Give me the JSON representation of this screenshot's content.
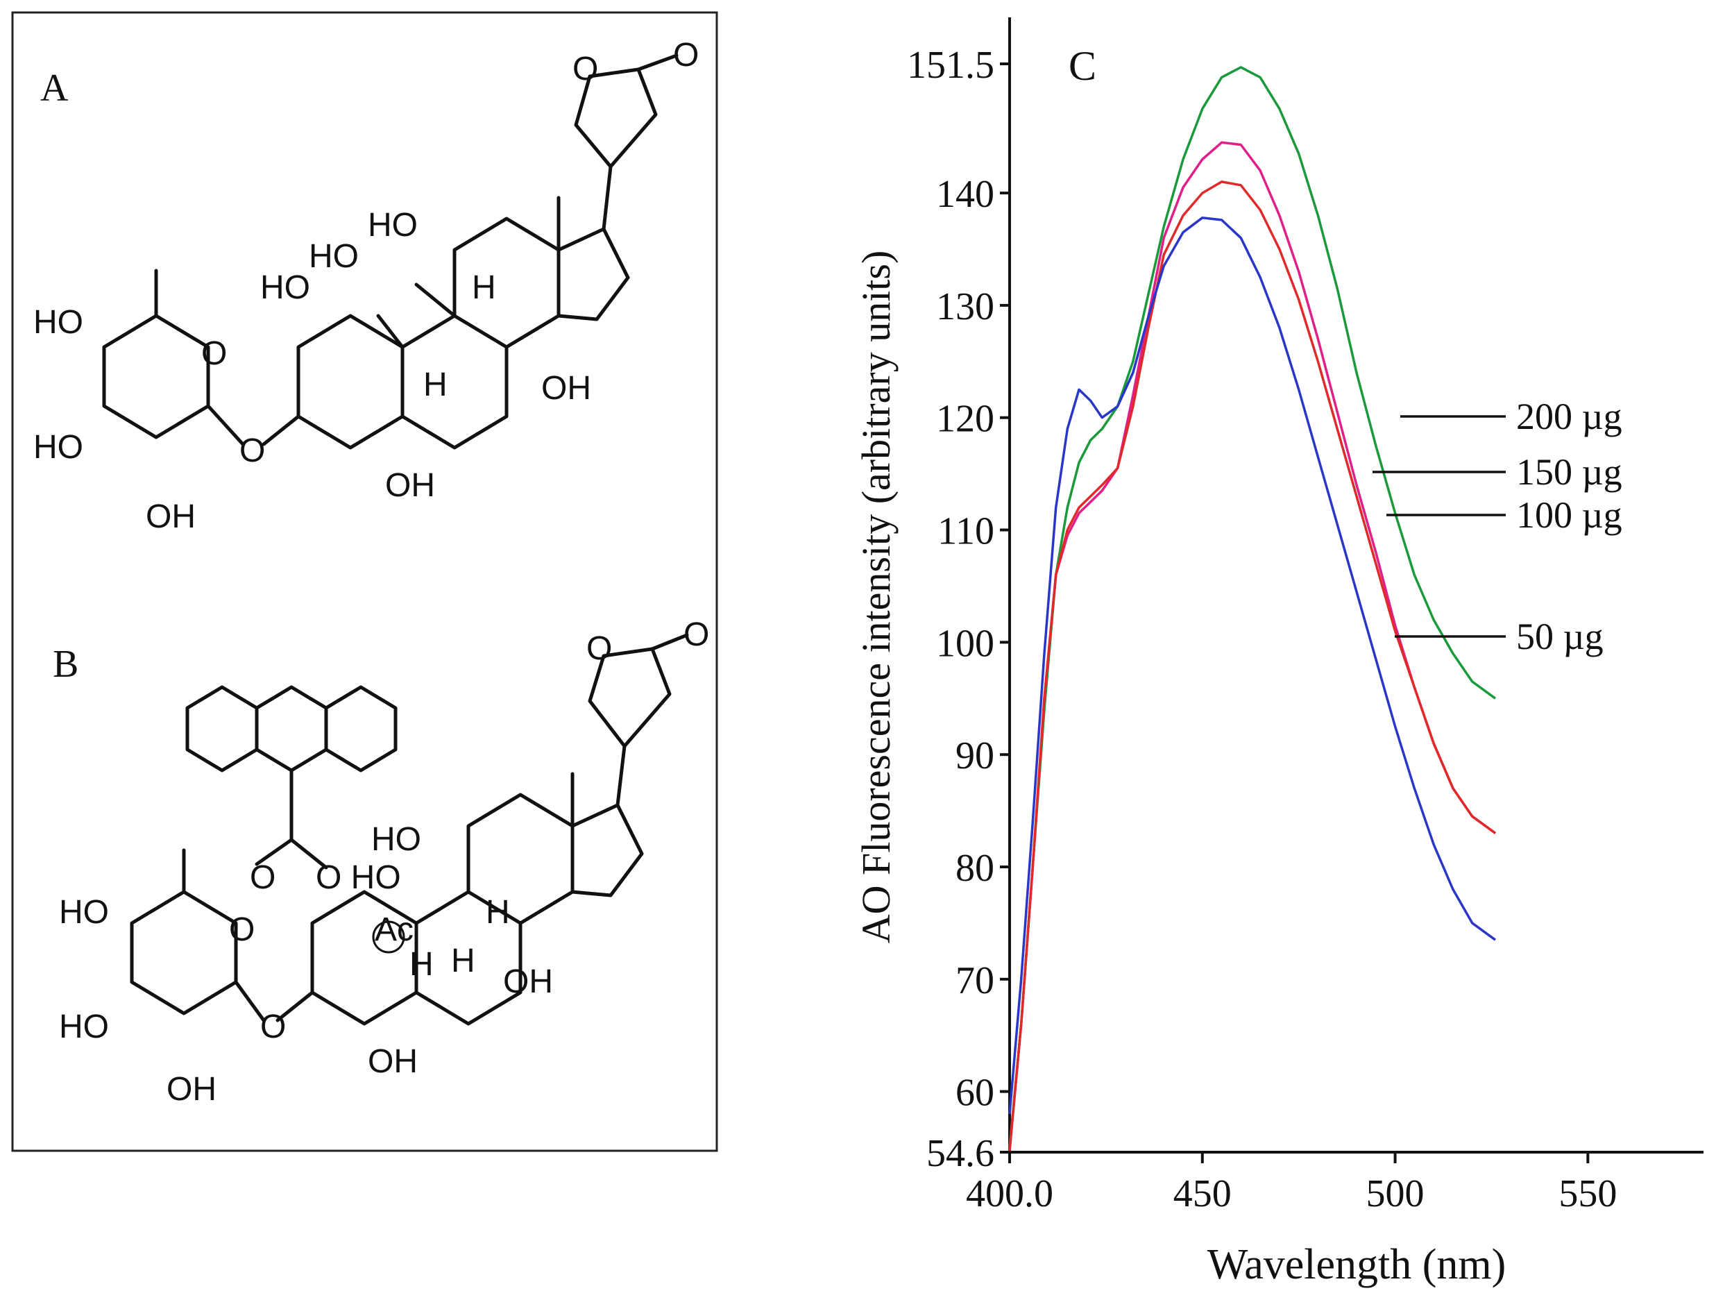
{
  "panels": {
    "a_label": "A",
    "b_label": "B",
    "c_label": "C"
  },
  "atoms": {
    "o": "O",
    "ho": "HO",
    "oh": "OH",
    "h": "H",
    "ac": "Ac",
    "hohoo": "O HO",
    "oeq": "O"
  },
  "chart_data": {
    "type": "line",
    "xlabel": "Wavelength (nm)",
    "ylabel": "AO Fluorescence intensity (arbitrary units)",
    "xlim": [
      400,
      580
    ],
    "ylim": [
      54.6,
      151.5
    ],
    "x_ticks": [
      {
        "value": 400,
        "label": "400.0"
      },
      {
        "value": 450,
        "label": "450"
      },
      {
        "value": 500,
        "label": "500"
      },
      {
        "value": 550,
        "label": "550"
      }
    ],
    "y_ticks": [
      {
        "value": 54.6,
        "label": "54.6"
      },
      {
        "value": 60,
        "label": "60"
      },
      {
        "value": 70,
        "label": "70"
      },
      {
        "value": 80,
        "label": "80"
      },
      {
        "value": 90,
        "label": "90"
      },
      {
        "value": 100,
        "label": "100"
      },
      {
        "value": 110,
        "label": "110"
      },
      {
        "value": 120,
        "label": "120"
      },
      {
        "value": 130,
        "label": "130"
      },
      {
        "value": 140,
        "label": "140"
      },
      {
        "value": 151.5,
        "label": "151.5"
      }
    ],
    "series": [
      {
        "name": "200 µg",
        "color": "#1a9a3a",
        "x": [
          400,
          403,
          406,
          409,
          412,
          415,
          418,
          421,
          424,
          428,
          432,
          436,
          440,
          445,
          450,
          455,
          460,
          465,
          470,
          475,
          480,
          485,
          490,
          495,
          500,
          505,
          510,
          515,
          520,
          526
        ],
        "y": [
          55,
          66,
          80,
          94,
          106,
          112,
          116,
          118,
          119,
          121,
          125,
          131,
          137,
          143,
          147.5,
          150.3,
          151.2,
          150.3,
          147.5,
          143.5,
          138,
          131.5,
          124,
          117.5,
          111.5,
          106,
          102,
          99,
          96.5,
          95
        ]
      },
      {
        "name": "150 µg",
        "color": "#e0208a",
        "x": [
          400,
          403,
          406,
          409,
          412,
          415,
          418,
          421,
          424,
          428,
          432,
          436,
          440,
          445,
          450,
          455,
          460,
          465,
          470,
          475,
          480,
          485,
          490,
          495,
          500,
          505,
          510,
          515,
          520,
          526
        ],
        "y": [
          54.8,
          66,
          80,
          95,
          106,
          109.5,
          111.5,
          112.5,
          113.5,
          115.5,
          122,
          129,
          136,
          140.5,
          143,
          144.5,
          144.3,
          142,
          138,
          133,
          127,
          120.5,
          114,
          108,
          101.5,
          96,
          91,
          87,
          84.5,
          83
        ]
      },
      {
        "name": "100 µg",
        "color": "#e02a2a",
        "x": [
          400,
          403,
          406,
          409,
          412,
          415,
          418,
          421,
          424,
          428,
          432,
          436,
          440,
          445,
          450,
          455,
          460,
          465,
          470,
          475,
          480,
          485,
          490,
          495,
          500,
          505,
          510,
          515,
          520,
          526
        ],
        "y": [
          54.7,
          66,
          80,
          95,
          106,
          110,
          112,
          113,
          114,
          115.5,
          121,
          128,
          134.5,
          138,
          140,
          141,
          140.7,
          138.5,
          135,
          130.5,
          125,
          119,
          113,
          107,
          101,
          96,
          91,
          87,
          84.5,
          83
        ]
      },
      {
        "name": "50 µg",
        "color": "#2a36c8",
        "x": [
          400,
          403,
          406,
          409,
          412,
          415,
          418,
          421,
          424,
          428,
          432,
          436,
          440,
          445,
          450,
          455,
          460,
          465,
          470,
          475,
          480,
          485,
          490,
          495,
          500,
          505,
          510,
          515,
          520,
          526
        ],
        "y": [
          58,
          70,
          84,
          99,
          112,
          119,
          122.5,
          121.5,
          120,
          121,
          124,
          129,
          133.5,
          136.5,
          137.8,
          137.6,
          136,
          132.5,
          128,
          122.5,
          116.5,
          110.5,
          104.5,
          98.5,
          92.5,
          87,
          82,
          78,
          75,
          73.5
        ]
      }
    ],
    "annotations": [
      {
        "text": "200 µg",
        "series": 0
      },
      {
        "text": "150 µg",
        "series": 1
      },
      {
        "text": "100 µg",
        "series": 2
      },
      {
        "text": "50 µg",
        "series": 3
      }
    ],
    "grid": false
  }
}
